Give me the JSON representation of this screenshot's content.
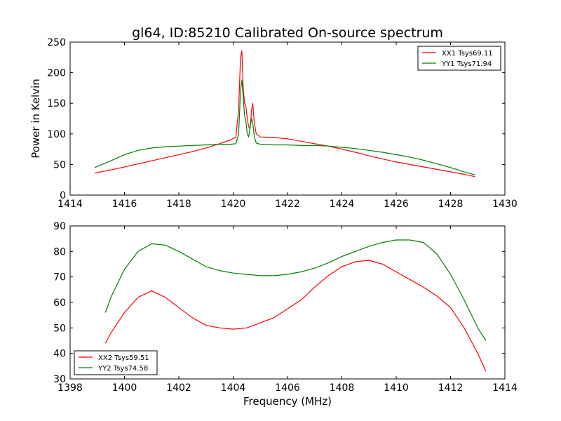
{
  "figure": {
    "title": "gl64, ID:85210 Calibrated On-source spectrum",
    "shared_xlabel": "Frequency (MHz)"
  },
  "colors": {
    "red": "#ff0000",
    "green": "#008000",
    "axis": "#000000"
  },
  "chart_data": [
    {
      "type": "line",
      "title": "gl64, ID:85210 Calibrated On-source spectrum",
      "xlabel": "",
      "ylabel": "Power in Kelvin",
      "xlim": [
        1414,
        1430
      ],
      "ylim": [
        0,
        250
      ],
      "xticks": [
        1414,
        1416,
        1418,
        1420,
        1422,
        1424,
        1426,
        1428,
        1430
      ],
      "yticks": [
        0,
        50,
        100,
        150,
        200,
        250
      ],
      "grid": false,
      "legend_position": "top-right",
      "series": [
        {
          "name": "XX1 Tsys69.11",
          "color": "#ff0000",
          "x": [
            1414.9,
            1415.5,
            1416,
            1416.5,
            1417,
            1417.5,
            1418,
            1418.5,
            1419,
            1419.5,
            1419.9,
            1420.1,
            1420.2,
            1420.27,
            1420.32,
            1420.37,
            1420.42,
            1420.47,
            1420.52,
            1420.57,
            1420.62,
            1420.68,
            1420.72,
            1420.78,
            1420.85,
            1421,
            1421.5,
            1422,
            1422.5,
            1423,
            1423.5,
            1424,
            1424.5,
            1425,
            1425.5,
            1426,
            1426.5,
            1427,
            1427.5,
            1428,
            1428.5,
            1428.9
          ],
          "y": [
            36,
            41,
            46,
            51,
            56,
            61,
            66,
            71,
            77,
            84,
            90,
            95,
            140,
            225,
            236,
            175,
            150,
            145,
            125,
            112,
            108,
            140,
            150,
            118,
            100,
            95,
            94,
            92,
            88,
            84,
            80,
            75,
            70,
            64,
            59,
            54,
            50,
            46,
            42,
            38,
            34,
            30
          ]
        },
        {
          "name": "YY1 Tsys71.94",
          "color": "#008000",
          "x": [
            1414.9,
            1415.5,
            1416,
            1416.5,
            1417,
            1417.5,
            1418,
            1418.5,
            1419,
            1419.5,
            1419.9,
            1420.1,
            1420.2,
            1420.27,
            1420.32,
            1420.37,
            1420.42,
            1420.47,
            1420.52,
            1420.57,
            1420.62,
            1420.68,
            1420.72,
            1420.78,
            1420.85,
            1421,
            1421.5,
            1422,
            1422.5,
            1423,
            1423.5,
            1424,
            1424.5,
            1425,
            1425.5,
            1426,
            1426.5,
            1427,
            1427.5,
            1428,
            1428.5,
            1428.9
          ],
          "y": [
            45,
            56,
            66,
            73,
            77,
            79,
            80,
            81,
            82,
            83,
            83,
            84,
            100,
            170,
            188,
            160,
            130,
            120,
            100,
            95,
            110,
            125,
            118,
            95,
            85,
            83,
            82,
            82,
            81,
            81,
            80,
            78,
            76,
            73,
            70,
            66,
            62,
            57,
            51,
            45,
            38,
            33
          ]
        }
      ]
    },
    {
      "type": "line",
      "title": "",
      "xlabel": "Frequency (MHz)",
      "ylabel": "",
      "xlim": [
        1398,
        1414
      ],
      "ylim": [
        30,
        90
      ],
      "xticks": [
        1398,
        1400,
        1402,
        1404,
        1406,
        1408,
        1410,
        1412,
        1414
      ],
      "yticks": [
        30,
        40,
        50,
        60,
        70,
        80,
        90
      ],
      "grid": false,
      "legend_position": "bottom-left",
      "series": [
        {
          "name": "XX2 Tsys59.51",
          "color": "#ff0000",
          "x": [
            1399.3,
            1399.5,
            1400,
            1400.5,
            1401,
            1401.5,
            1402,
            1402.5,
            1403,
            1403.5,
            1404,
            1404.5,
            1405,
            1405.5,
            1406,
            1406.5,
            1407,
            1407.5,
            1408,
            1408.5,
            1409,
            1409.5,
            1410,
            1410.5,
            1411,
            1411.5,
            1412,
            1412.5,
            1413,
            1413.3
          ],
          "y": [
            44,
            48,
            56,
            62,
            64.5,
            62,
            58,
            54,
            51,
            50,
            49.5,
            50,
            52,
            54,
            57.5,
            61,
            66,
            70.5,
            74,
            76,
            76.5,
            75,
            72,
            69,
            66,
            62.5,
            58,
            50,
            40,
            33
          ]
        },
        {
          "name": "YY2 Tsys74.58",
          "color": "#008000",
          "x": [
            1399.3,
            1399.5,
            1400,
            1400.5,
            1401,
            1401.5,
            1402,
            1402.5,
            1403,
            1403.5,
            1404,
            1404.5,
            1405,
            1405.5,
            1406,
            1406.5,
            1407,
            1407.5,
            1408,
            1408.5,
            1409,
            1409.5,
            1410,
            1410.5,
            1411,
            1411.5,
            1412,
            1412.5,
            1413,
            1413.3
          ],
          "y": [
            56,
            62,
            73,
            80,
            83,
            82.5,
            80,
            77,
            74,
            72.5,
            71.5,
            71,
            70.5,
            70.5,
            71,
            72,
            73.5,
            75.5,
            78,
            80,
            82,
            83.5,
            84.5,
            84.5,
            83.5,
            79,
            71,
            61,
            50,
            45
          ]
        }
      ]
    }
  ]
}
